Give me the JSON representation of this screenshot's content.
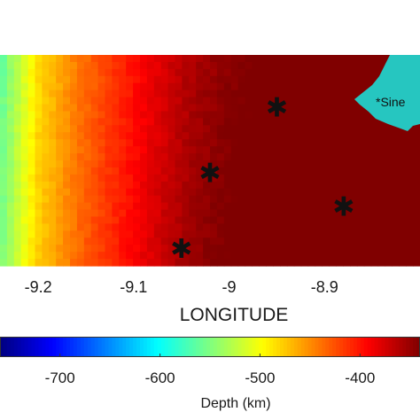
{
  "chart_data": [
    {
      "type": "heatmap",
      "x_tick_labels": [
        "-9.2",
        "-9.1",
        "-9",
        "-8.9"
      ],
      "x_ticks": [
        -9.2,
        -9.1,
        -9.0,
        -8.9
      ],
      "xlim": [
        -9.24,
        -8.8
      ],
      "xlabel": "LONGITUDE",
      "colormap": "jet",
      "value_unit": "Depth (km)",
      "depth_gradient_by_longitude": {
        "x": [
          -9.24,
          -9.2,
          -9.16,
          -9.12,
          -9.08,
          -9.04,
          -9.0,
          -8.96,
          -8.92,
          -8.88,
          -8.84,
          -8.8
        ],
        "depth": [
          -560,
          -480,
          -440,
          -410,
          -380,
          -355,
          -340,
          -330,
          -315,
          -300,
          -290,
          -280
        ]
      },
      "land_fill_color": "#26c6c0",
      "station_markers": [
        {
          "x": -8.95,
          "y_frac": 0.25
        },
        {
          "x": -9.02,
          "y_frac": 0.56
        },
        {
          "x": -8.88,
          "y_frac": 0.72
        },
        {
          "x": -9.05,
          "y_frac": 0.92
        }
      ],
      "annotations": [
        "*Sine"
      ]
    },
    {
      "type": "colorbar",
      "colormap": "jet",
      "tick_labels": [
        "-700",
        "-600",
        "-500",
        "-400"
      ],
      "ticks": [
        -700,
        -600,
        -500,
        -400
      ],
      "range": [
        -760,
        -340
      ],
      "label": "Depth (km)"
    }
  ],
  "map": {
    "annotation": "*Sine",
    "marker_symbol": "✱"
  },
  "colors": {
    "land": "#26c6c0",
    "marker": "#111111"
  }
}
